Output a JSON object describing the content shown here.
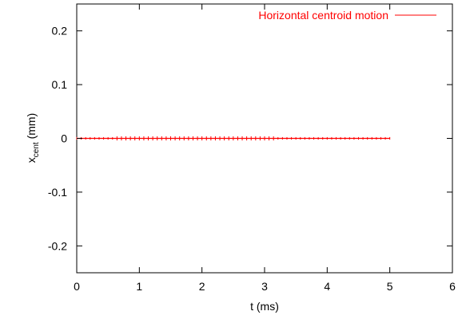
{
  "chart_data": {
    "type": "line",
    "title": "",
    "xlabel": "t (ms)",
    "ylabel_main": "x",
    "ylabel_sub": "cent",
    "ylabel_unit": " (mm)",
    "xlim": [
      0,
      6
    ],
    "ylim": [
      -0.25,
      0.25
    ],
    "x_ticks": [
      0,
      1,
      2,
      3,
      4,
      5,
      6
    ],
    "x_tick_labels": [
      "0",
      "1",
      "2",
      "3",
      "4",
      "5",
      "6"
    ],
    "y_ticks": [
      -0.2,
      -0.1,
      0,
      0.1,
      0.2
    ],
    "y_tick_labels": [
      "-0.2",
      "-0.1",
      "0",
      "0.1",
      "0.2"
    ],
    "grid": false,
    "legend_position": "top-right",
    "series": [
      {
        "name": "Horizontal centroid motion",
        "color": "#ff0000",
        "x": [
          0.0,
          0.25,
          0.5,
          0.75,
          1.0,
          1.25,
          1.5,
          1.75,
          2.0,
          2.25,
          2.5,
          2.75,
          3.0,
          3.25,
          3.5,
          3.75,
          4.0,
          4.25,
          4.5,
          4.75,
          5.0
        ],
        "y": [
          0,
          0,
          0,
          0,
          0,
          0,
          0,
          0,
          0,
          0,
          0,
          0,
          0,
          0,
          0,
          0,
          0,
          0,
          0,
          0,
          0
        ]
      }
    ]
  }
}
